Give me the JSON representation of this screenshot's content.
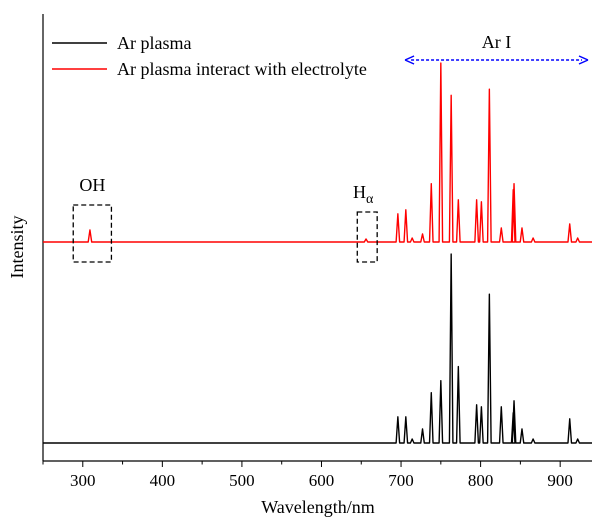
{
  "chart_data": {
    "type": "line",
    "xlabel": "Wavelength/nm",
    "ylabel": "Intensity",
    "xlim": [
      250,
      940
    ],
    "xticks": [
      300,
      400,
      500,
      600,
      700,
      800,
      900
    ],
    "y_ticks_shown": false,
    "grid": false,
    "legend_position": "top-left",
    "series": [
      {
        "name": "Ar plasma",
        "color": "#000000",
        "baseline": 0.0,
        "peaks": [
          {
            "x": 696,
            "y": 0.13
          },
          {
            "x": 706,
            "y": 0.13
          },
          {
            "x": 714,
            "y": 0.02
          },
          {
            "x": 727,
            "y": 0.07
          },
          {
            "x": 738,
            "y": 0.25
          },
          {
            "x": 750,
            "y": 0.31
          },
          {
            "x": 763,
            "y": 0.94
          },
          {
            "x": 772,
            "y": 0.38
          },
          {
            "x": 795,
            "y": 0.19
          },
          {
            "x": 801,
            "y": 0.18
          },
          {
            "x": 811,
            "y": 0.74
          },
          {
            "x": 826,
            "y": 0.18
          },
          {
            "x": 841,
            "y": 0.15
          },
          {
            "x": 842,
            "y": 0.21
          },
          {
            "x": 852,
            "y": 0.07
          },
          {
            "x": 866,
            "y": 0.02
          },
          {
            "x": 912,
            "y": 0.12
          },
          {
            "x": 922,
            "y": 0.02
          }
        ]
      },
      {
        "name": "Ar plasma interact with electrolyte",
        "color": "#ff0000",
        "baseline": 1.0,
        "peaks": [
          {
            "x": 309,
            "y": 0.06
          },
          {
            "x": 656,
            "y": 0.015
          },
          {
            "x": 696,
            "y": 0.14
          },
          {
            "x": 706,
            "y": 0.16
          },
          {
            "x": 714,
            "y": 0.02
          },
          {
            "x": 727,
            "y": 0.04
          },
          {
            "x": 738,
            "y": 0.29
          },
          {
            "x": 750,
            "y": 0.89
          },
          {
            "x": 763,
            "y": 0.73
          },
          {
            "x": 772,
            "y": 0.21
          },
          {
            "x": 795,
            "y": 0.21
          },
          {
            "x": 801,
            "y": 0.2
          },
          {
            "x": 811,
            "y": 0.76
          },
          {
            "x": 826,
            "y": 0.07
          },
          {
            "x": 841,
            "y": 0.26
          },
          {
            "x": 842,
            "y": 0.29
          },
          {
            "x": 852,
            "y": 0.07
          },
          {
            "x": 866,
            "y": 0.02
          },
          {
            "x": 912,
            "y": 0.09
          },
          {
            "x": 922,
            "y": 0.02
          }
        ]
      }
    ],
    "annotations": [
      {
        "text": "OH",
        "x_range": [
          288,
          336
        ],
        "series": "Ar plasma interact with electrolyte"
      },
      {
        "text": "H",
        "subscript": "α",
        "x_range": [
          645,
          670
        ],
        "series": "Ar plasma interact with electrolyte"
      },
      {
        "text": "Ar I",
        "x_range": [
          700,
          940
        ],
        "arrow": "double-headed",
        "arrow_color": "#0000ff"
      }
    ]
  }
}
